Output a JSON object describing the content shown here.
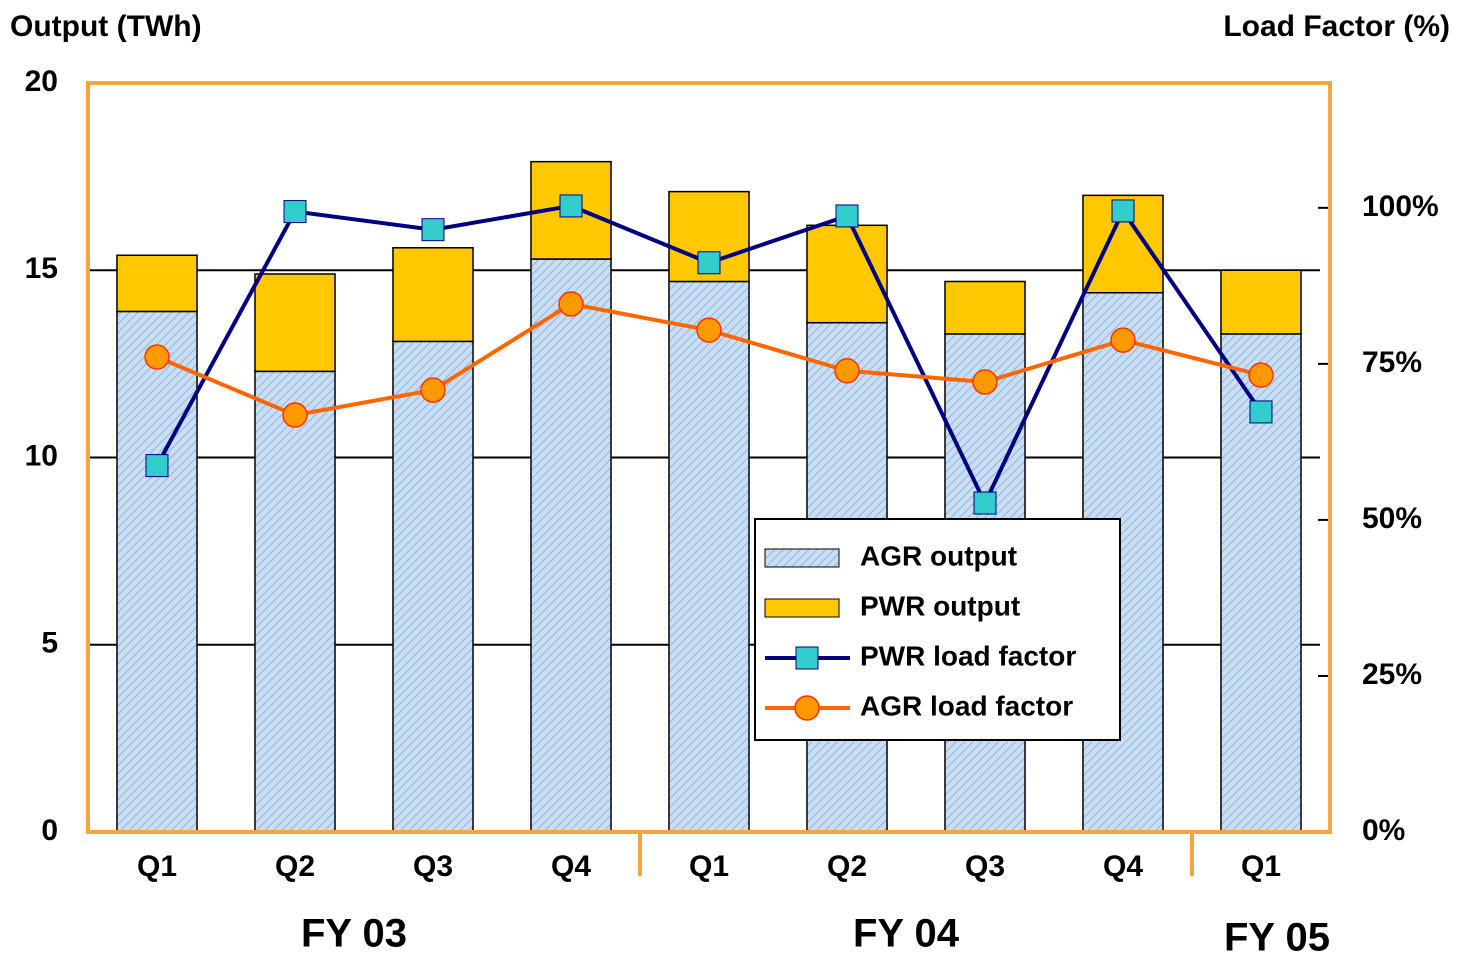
{
  "chart_data": {
    "type": "bar_line",
    "y_label": "Output (TWh)",
    "y2_label": "Load Factor (%)",
    "categories": [
      "Q1",
      "Q2",
      "Q3",
      "Q4",
      "Q1",
      "Q2",
      "Q3",
      "Q4",
      "Q1"
    ],
    "group_labels": [
      "FY 03",
      "FY 04",
      "FY 05"
    ],
    "series": [
      {
        "name": "AGR output",
        "type": "bar",
        "color": "#c9def3",
        "hatch": "#8fb4de",
        "values": [
          13.9,
          12.3,
          13.1,
          15.3,
          14.7,
          13.6,
          13.3,
          14.4,
          13.3
        ]
      },
      {
        "name": "PWR output",
        "type": "bar",
        "color": "#ffc800",
        "values": [
          1.5,
          2.6,
          2.5,
          2.6,
          2.4,
          2.6,
          1.4,
          2.6,
          1.7
        ]
      },
      {
        "name": "PWR load factor",
        "type": "line",
        "axis": "y2",
        "color": "#000080",
        "marker": "square",
        "marker_color": "#33cccc",
        "values": [
          58.7,
          99.4,
          96.5,
          100.3,
          91.2,
          98.7,
          52.7,
          99.5,
          67.3
        ]
      },
      {
        "name": "AGR load factor",
        "type": "line",
        "axis": "y2",
        "color": "#ff6600",
        "marker": "circle",
        "marker_color": "#ff9900",
        "values": [
          76.1,
          66.8,
          70.8,
          84.6,
          80.4,
          73.9,
          72.1,
          78.8,
          73.2
        ]
      }
    ],
    "ylim": [
      0,
      20
    ],
    "yticks": [
      0,
      5,
      10,
      15,
      20
    ],
    "y2lim": [
      0,
      120
    ],
    "y2ticks": [
      {
        "value": 0,
        "label": "0%"
      },
      {
        "value": 25,
        "label": "25%"
      },
      {
        "value": 50,
        "label": "50%"
      },
      {
        "value": 75,
        "label": "75%"
      },
      {
        "value": 100,
        "label": "100%"
      }
    ],
    "grid": true,
    "frame_color": "#f7a541"
  }
}
